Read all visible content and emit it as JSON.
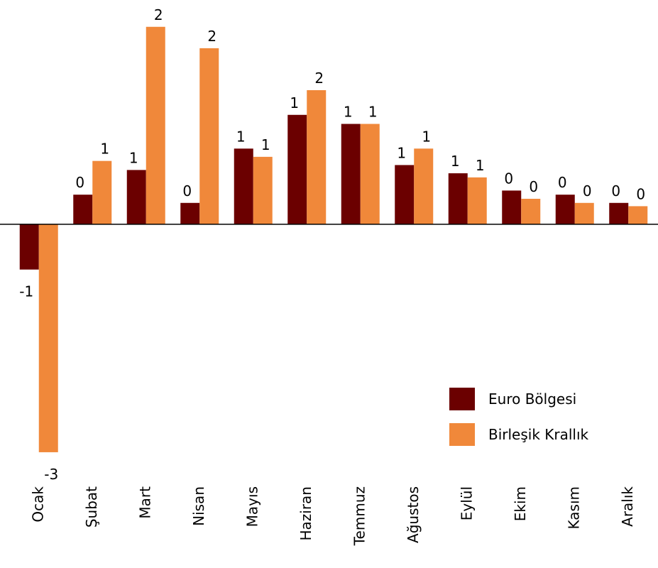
{
  "chart_data": {
    "type": "bar",
    "categories": [
      "Ocak",
      "Şubat",
      "Mart",
      "Nisan",
      "Mayıs",
      "Haziran",
      "Temmuz",
      "Ağustos",
      "Eylül",
      "Ekim",
      "Kasım",
      "Aralık"
    ],
    "series": [
      {
        "name": "Euro Bölgesi",
        "color": "#6b0000",
        "values": [
          -0.55,
          0.36,
          0.66,
          0.26,
          0.92,
          1.33,
          1.22,
          0.72,
          0.62,
          0.41,
          0.36,
          0.26
        ],
        "value_labels": [
          "-1",
          "0",
          "1",
          "0",
          "1",
          "1",
          "1",
          "1",
          "1",
          "0",
          "0",
          "0"
        ]
      },
      {
        "name": "Birleşik Krallık",
        "color": "#f0883a",
        "values": [
          -2.77,
          0.77,
          2.4,
          2.14,
          0.82,
          1.63,
          1.22,
          0.92,
          0.57,
          0.31,
          0.26,
          0.22
        ],
        "value_labels": [
          "-3",
          "1",
          "2",
          "2",
          "1",
          "2",
          "1",
          "1",
          "1",
          "0",
          "0",
          "0"
        ]
      }
    ],
    "ylim": [
      -2.9,
      2.7
    ],
    "legend": "lower right"
  }
}
